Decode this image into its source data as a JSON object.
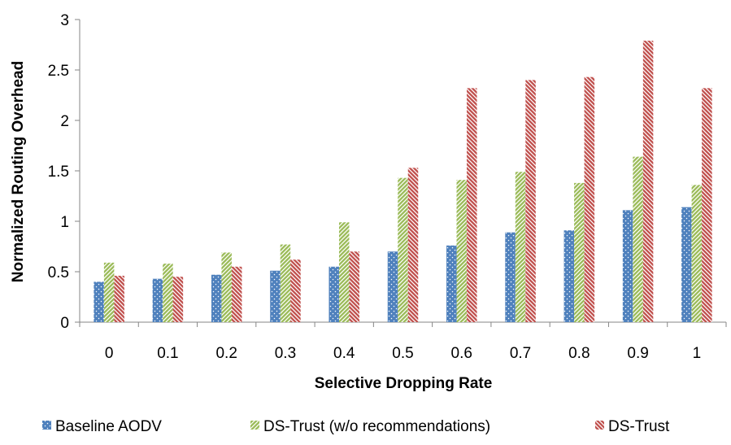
{
  "chart_data": {
    "type": "bar",
    "xlabel": "Selective Dropping Rate",
    "ylabel": "Normalized Routing Overhead",
    "ylim": [
      0,
      3
    ],
    "yticks": [
      "0",
      "0.5",
      "1",
      "1.5",
      "2",
      "2.5",
      "3"
    ],
    "categories": [
      "0",
      "0.1",
      "0.2",
      "0.3",
      "0.4",
      "0.5",
      "0.6",
      "0.7",
      "0.8",
      "0.9",
      "1"
    ],
    "grid": false,
    "legend_position": "bottom",
    "series": [
      {
        "name": "Baseline AODV",
        "color": "#4f81bd",
        "pattern": "dotted",
        "values": [
          0.4,
          0.43,
          0.47,
          0.51,
          0.55,
          0.7,
          0.76,
          0.89,
          0.91,
          1.11,
          1.14
        ]
      },
      {
        "name": "DS-Trust (w/o recommendations)",
        "color": "#9bbb59",
        "pattern": "diagonal-up",
        "values": [
          0.59,
          0.58,
          0.69,
          0.77,
          0.99,
          1.43,
          1.41,
          1.49,
          1.38,
          1.64,
          1.36
        ]
      },
      {
        "name": "DS-Trust",
        "color": "#c0504d",
        "pattern": "diagonal-down",
        "values": [
          0.46,
          0.45,
          0.55,
          0.62,
          0.7,
          1.53,
          2.32,
          2.4,
          2.43,
          2.79,
          2.32
        ]
      }
    ]
  }
}
